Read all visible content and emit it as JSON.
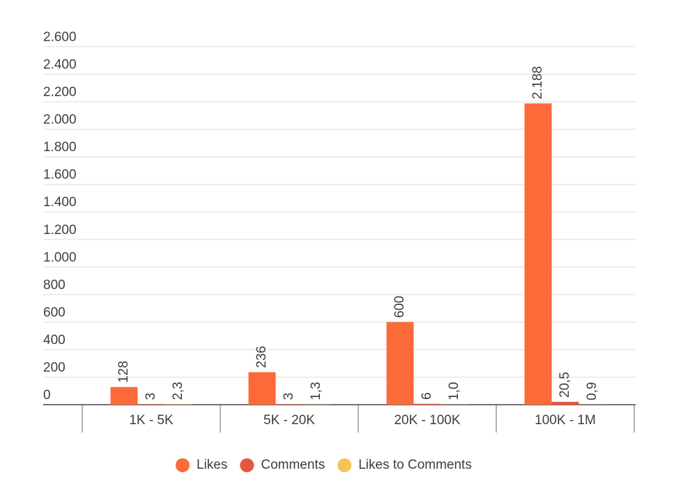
{
  "chart_data": {
    "type": "bar",
    "categories": [
      "1K - 5K",
      "5K - 20K",
      "20K - 100K",
      "100K - 1M"
    ],
    "series": [
      {
        "name": "Likes",
        "color": "#fd6a39",
        "values": [
          128,
          236,
          600,
          2188
        ],
        "value_labels": [
          "128",
          "236",
          "600",
          "2.188"
        ]
      },
      {
        "name": "Comments",
        "color": "#e5553f",
        "values": [
          3,
          3,
          6,
          20.5
        ],
        "value_labels": [
          "3",
          "3",
          "6",
          "20,5"
        ]
      },
      {
        "name": "Likes to Comments",
        "color": "#f3c45a",
        "values": [
          2.3,
          1.3,
          1.0,
          0.9
        ],
        "value_labels": [
          "2,3",
          "1,3",
          "1,0",
          "0,9"
        ]
      }
    ],
    "ylim": [
      0,
      2600
    ],
    "yticks": [
      0,
      200,
      400,
      600,
      800,
      {
        "value": 1000,
        "label": "1.000"
      },
      {
        "value": 1200,
        "label": "1.200"
      },
      {
        "value": 1400,
        "label": "1.400"
      },
      {
        "value": 1600,
        "label": "1.600"
      },
      {
        "value": 1800,
        "label": "1.800"
      },
      {
        "value": 2000,
        "label": "2.000"
      },
      {
        "value": 2200,
        "label": "2.200"
      },
      {
        "value": 2400,
        "label": "2.400"
      },
      {
        "value": 2600,
        "label": "2.600"
      }
    ],
    "grid": true,
    "legend": "bottom"
  }
}
